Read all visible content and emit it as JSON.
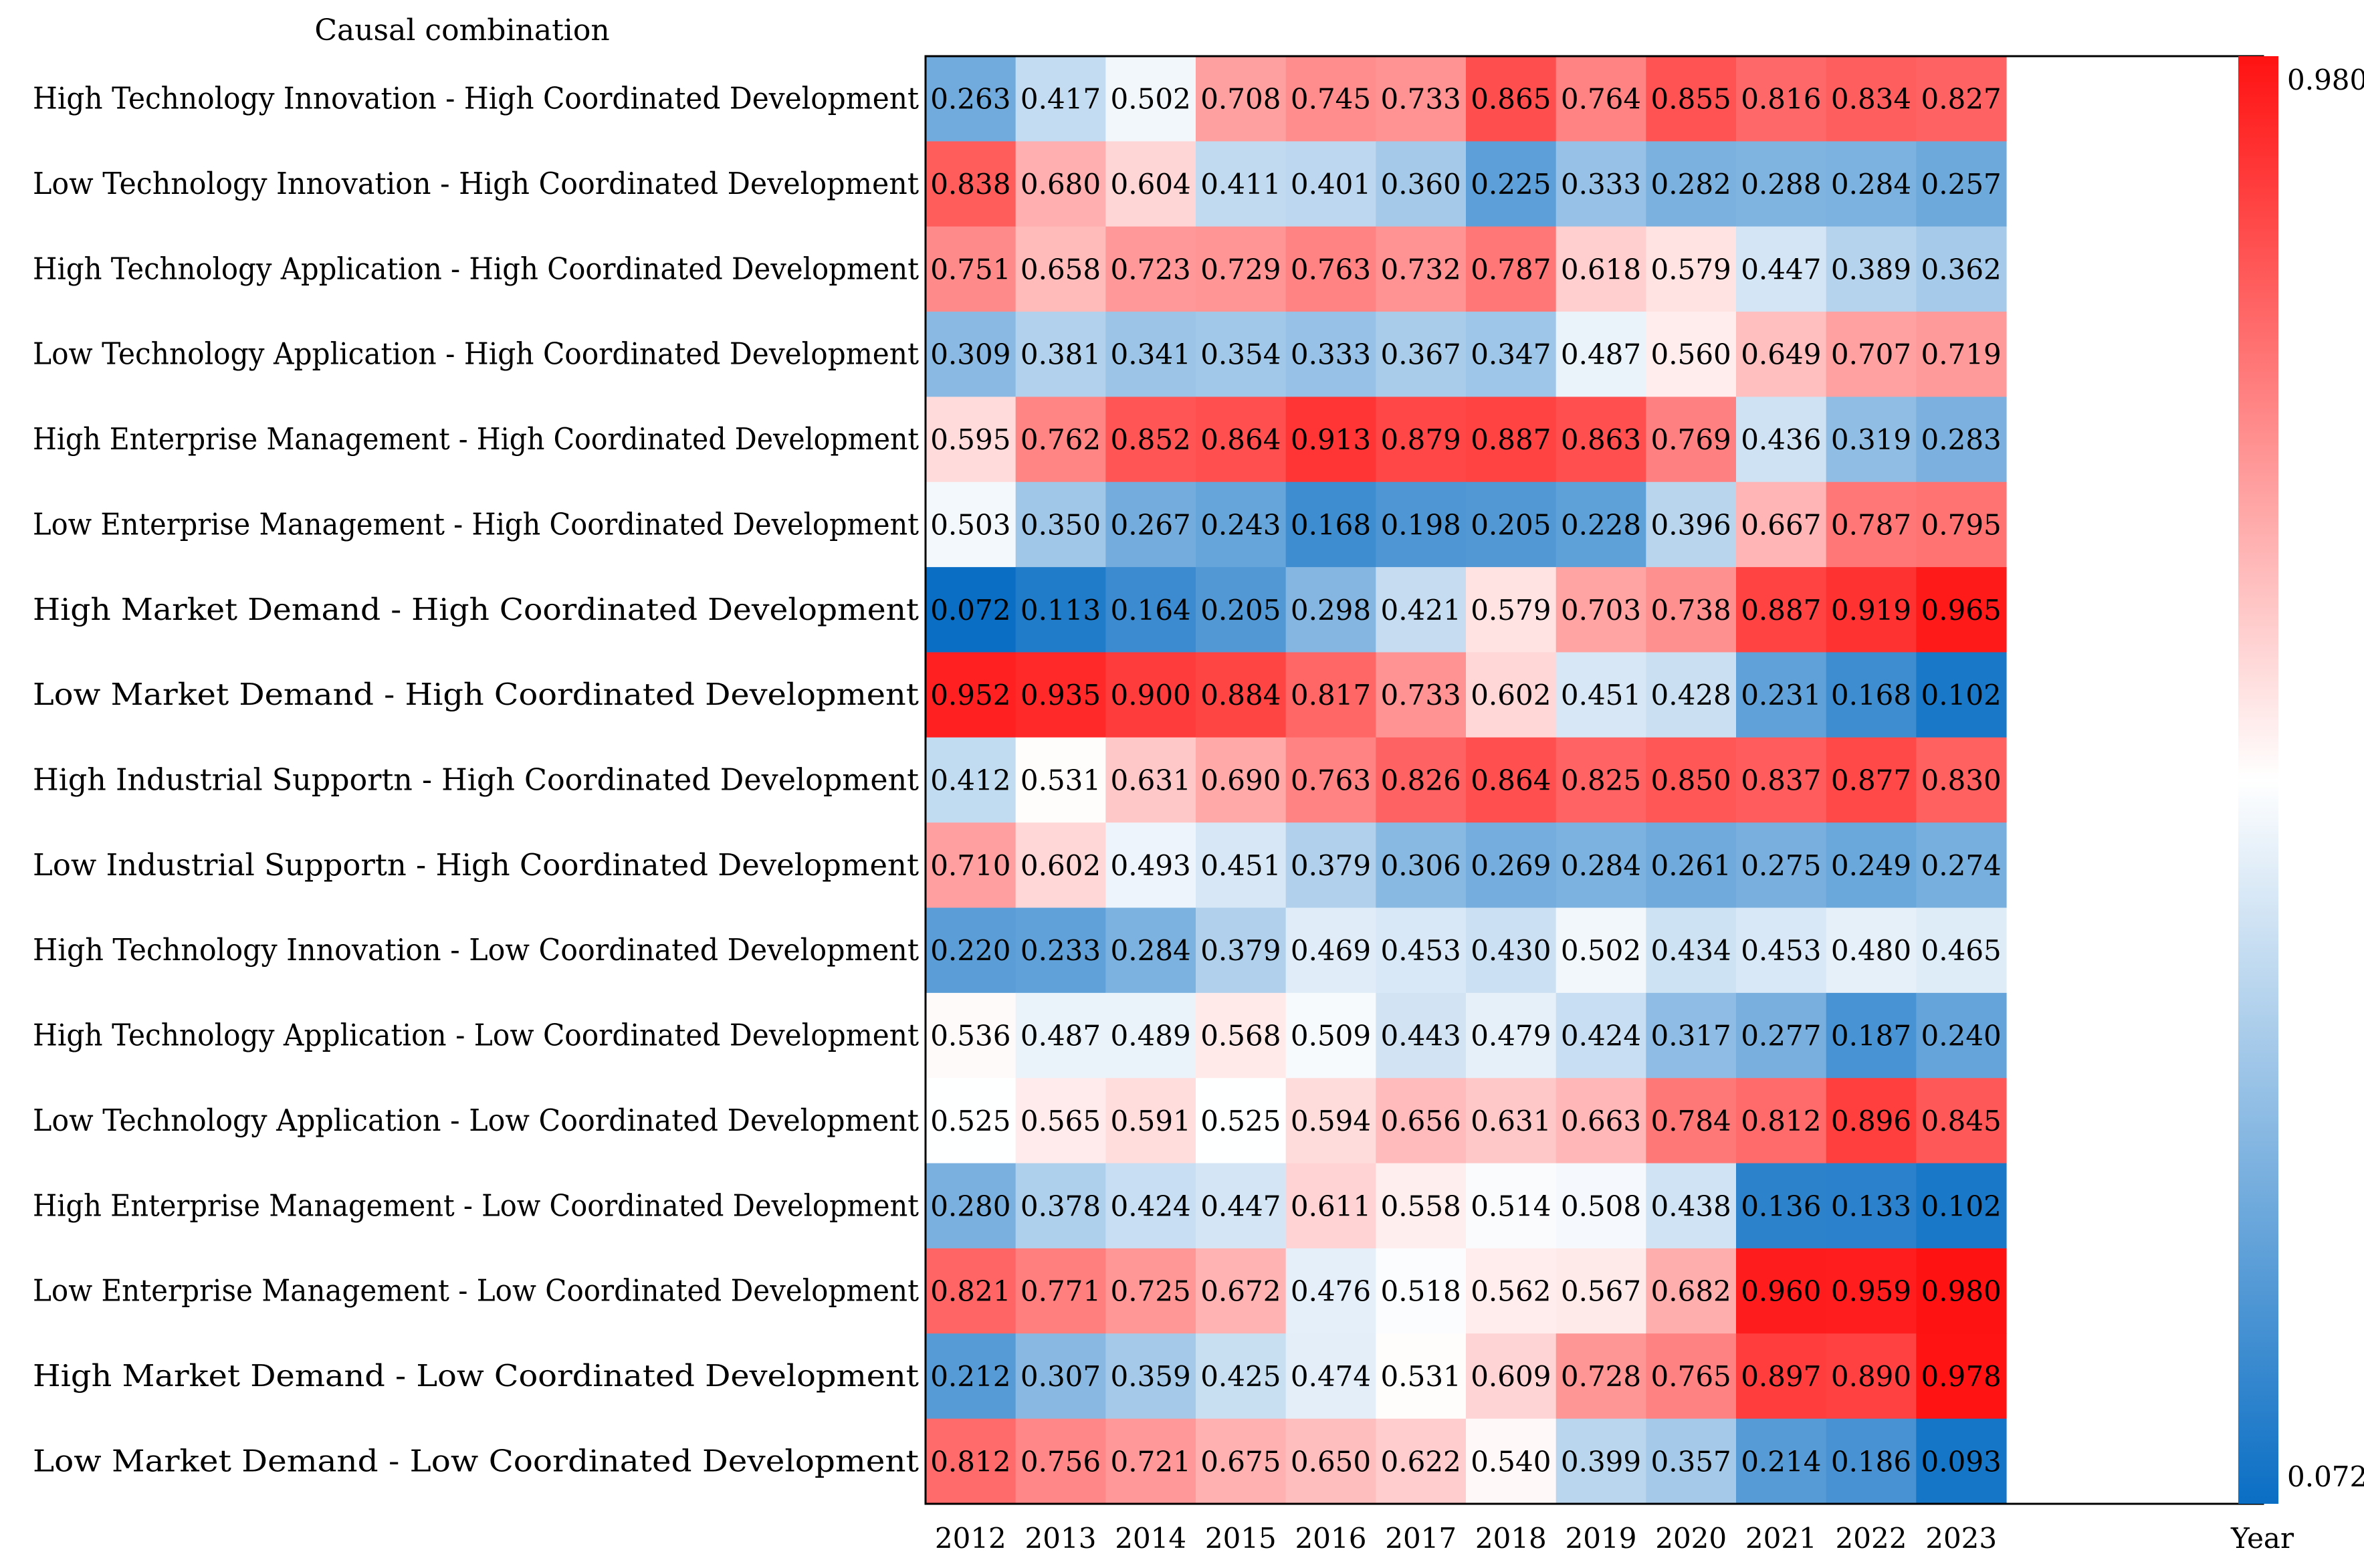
{
  "chart_data": {
    "type": "heatmap",
    "title": "",
    "ylabel": "Causal combination",
    "xlabel": "Year",
    "x_categories": [
      "2012",
      "2013",
      "2014",
      "2015",
      "2016",
      "2017",
      "2018",
      "2019",
      "2020",
      "2021",
      "2022",
      "2023"
    ],
    "y_categories": [
      "High Technology Innovation - High Coordinated Development",
      "Low Technology Innovation - High Coordinated Development",
      "High Technology Application - High Coordinated Development",
      "Low Technology Application - High Coordinated Development",
      "High Enterprise Management - High Coordinated Development",
      "Low Enterprise Management - High Coordinated Development",
      "High Market Demand - High Coordinated Development",
      "Low Market Demand - High Coordinated Development",
      "High Industrial Supportn - High Coordinated Development",
      "Low Industrial Supportn - High Coordinated Development",
      "High Technology Innovation - Low Coordinated Development",
      "High Technology Application - Low Coordinated Development",
      "Low Technology Application - Low Coordinated Development",
      "High Enterprise Management - Low Coordinated Development",
      "Low Enterprise Management - Low Coordinated Development",
      "High Market Demand - Low Coordinated Development",
      "Low Market Demand - Low Coordinated Development"
    ],
    "values": [
      [
        "0.263",
        "0.417",
        "0.502",
        "0.708",
        "0.745",
        "0.733",
        "0.865",
        "0.764",
        "0.855",
        "0.816",
        "0.834",
        "0.827"
      ],
      [
        "0.838",
        "0.680",
        "0.604",
        "0.411",
        "0.401",
        "0.360",
        "0.225",
        "0.333",
        "0.282",
        "0.288",
        "0.284",
        "0.257"
      ],
      [
        "0.751",
        "0.658",
        "0.723",
        "0.729",
        "0.763",
        "0.732",
        "0.787",
        "0.618",
        "0.579",
        "0.447",
        "0.389",
        "0.362"
      ],
      [
        "0.309",
        "0.381",
        "0.341",
        "0.354",
        "0.333",
        "0.367",
        "0.347",
        "0.487",
        "0.560",
        "0.649",
        "0.707",
        "0.719"
      ],
      [
        "0.595",
        "0.762",
        "0.852",
        "0.864",
        "0.913",
        "0.879",
        "0.887",
        "0.863",
        "0.769",
        "0.436",
        "0.319",
        "0.283"
      ],
      [
        "0.503",
        "0.350",
        "0.267",
        "0.243",
        "0.168",
        "0.198",
        "0.205",
        "0.228",
        "0.396",
        "0.667",
        "0.787",
        "0.795"
      ],
      [
        "0.072",
        "0.113",
        "0.164",
        "0.205",
        "0.298",
        "0.421",
        "0.579",
        "0.703",
        "0.738",
        "0.887",
        "0.919",
        "0.965"
      ],
      [
        "0.952",
        "0.935",
        "0.900",
        "0.884",
        "0.817",
        "0.733",
        "0.602",
        "0.451",
        "0.428",
        "0.231",
        "0.168",
        "0.102"
      ],
      [
        "0.412",
        "0.531",
        "0.631",
        "0.690",
        "0.763",
        "0.826",
        "0.864",
        "0.825",
        "0.850",
        "0.837",
        "0.877",
        "0.830"
      ],
      [
        "0.710",
        "0.602",
        "0.493",
        "0.451",
        "0.379",
        "0.306",
        "0.269",
        "0.284",
        "0.261",
        "0.275",
        "0.249",
        "0.274"
      ],
      [
        "0.220",
        "0.233",
        "0.284",
        "0.379",
        "0.469",
        "0.453",
        "0.430",
        "0.502",
        "0.434",
        "0.453",
        "0.480",
        "0.465"
      ],
      [
        "0.536",
        "0.487",
        "0.489",
        "0.568",
        "0.509",
        "0.443",
        "0.479",
        "0.424",
        "0.317",
        "0.277",
        "0.187",
        "0.240"
      ],
      [
        "0.525",
        "0.565",
        "0.591",
        "0.525",
        "0.594",
        "0.656",
        "0.631",
        "0.663",
        "0.784",
        "0.812",
        "0.896",
        "0.845"
      ],
      [
        "0.280",
        "0.378",
        "0.424",
        "0.447",
        "0.611",
        "0.558",
        "0.514",
        "0.508",
        "0.438",
        "0.136",
        "0.133",
        "0.102"
      ],
      [
        "0.821",
        "0.771",
        "0.725",
        "0.672",
        "0.476",
        "0.518",
        "0.562",
        "0.567",
        "0.682",
        "0.960",
        "0.959",
        "0.980"
      ],
      [
        "0.212",
        "0.307",
        "0.359",
        "0.425",
        "0.474",
        "0.531",
        "0.609",
        "0.728",
        "0.765",
        "0.897",
        "0.890",
        "0.978"
      ],
      [
        "0.812",
        "0.756",
        "0.721",
        "0.675",
        "0.650",
        "0.622",
        "0.540",
        "0.399",
        "0.357",
        "0.214",
        "0.186",
        "0.093"
      ]
    ],
    "colorbar": {
      "min_label": "0.072",
      "max_label": "0.980",
      "min": 0.072,
      "max": 0.98,
      "low_color": "#0a6ec4",
      "mid_color": "#ffffff",
      "high_color": "#ff1212"
    }
  }
}
